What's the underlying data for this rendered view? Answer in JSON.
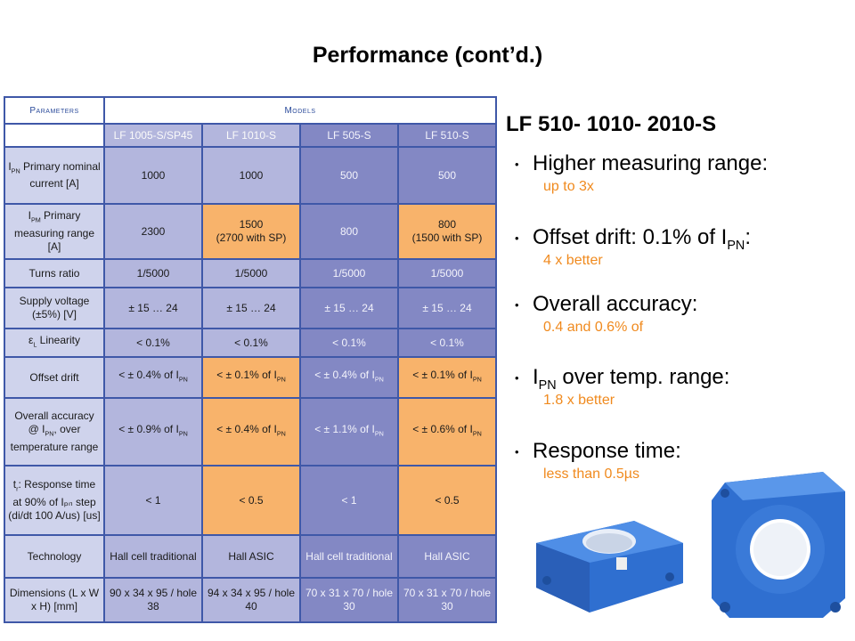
{
  "title": "Performance (cont’d.)",
  "table": {
    "header_params": "Parameters",
    "header_models": "Models",
    "models": [
      "LF 1005-S/SP45",
      "LF 1010-S",
      "LF 505-S",
      "LF 510-S"
    ],
    "rows": [
      {
        "param_main": "I",
        "param_sub": "PN",
        "param_rest": " Primary nominal current [A]",
        "cells": [
          {
            "v1": "1000",
            "v2": "",
            "hi": false
          },
          {
            "v1": "1000",
            "v2": "",
            "hi": false
          },
          {
            "v1": "500",
            "v2": "",
            "hi": false
          },
          {
            "v1": "500",
            "v2": "",
            "hi": false
          }
        ]
      },
      {
        "param_main": "I",
        "param_sub": "PM",
        "param_rest": " Primary measuring range [A]",
        "cells": [
          {
            "v1": "2300",
            "v2": "",
            "hi": false
          },
          {
            "v1": "1500",
            "v2": "(2700 with SP)",
            "hi": true
          },
          {
            "v1": "800",
            "v2": "",
            "hi": false
          },
          {
            "v1": "800",
            "v2": "(1500 with SP)",
            "hi": true
          }
        ]
      },
      {
        "param_main": "Turns ratio",
        "param_sub": "",
        "param_rest": "",
        "cells": [
          {
            "v1": "1/5000",
            "v2": "",
            "hi": false
          },
          {
            "v1": "1/5000",
            "v2": "",
            "hi": false
          },
          {
            "v1": "1/5000",
            "v2": "",
            "hi": false
          },
          {
            "v1": "1/5000",
            "v2": "",
            "hi": false
          }
        ]
      },
      {
        "param_main": "Supply voltage (±5%)  [V]",
        "param_sub": "",
        "param_rest": "",
        "cells": [
          {
            "v1": "± 15 … 24",
            "v2": "",
            "hi": false
          },
          {
            "v1": "± 15 … 24",
            "v2": "",
            "hi": false
          },
          {
            "v1": "± 15 … 24",
            "v2": "",
            "hi": false
          },
          {
            "v1": "± 15 … 24",
            "v2": "",
            "hi": false
          }
        ]
      },
      {
        "param_main": "ε",
        "param_sub": "L",
        "param_rest": " Linearity",
        "cells": [
          {
            "v1": "< 0.1%",
            "v2": "",
            "hi": false
          },
          {
            "v1": "< 0.1%",
            "v2": "",
            "hi": false
          },
          {
            "v1": "< 0.1%",
            "v2": "",
            "hi": false
          },
          {
            "v1": "< 0.1%",
            "v2": "",
            "hi": false
          }
        ]
      },
      {
        "param_main": "Offset drift",
        "param_sub": "",
        "param_rest": "",
        "cells": [
          {
            "v1": "< ± 0.4% of I",
            "v2": "PN",
            "hi": false
          },
          {
            "v1": "< ± 0.1% of I",
            "v2": "PN",
            "hi": true
          },
          {
            "v1": "< ± 0.4% of I",
            "v2": "PN",
            "hi": false
          },
          {
            "v1": "< ± 0.1% of I",
            "v2": "PN",
            "hi": true
          }
        ]
      },
      {
        "param_main": "Overall accuracy @ I",
        "param_sub": "PN",
        "param_rest": ", over temperature range",
        "cells": [
          {
            "v1": "< ± 0.9% of I",
            "v2": "PN",
            "hi": false
          },
          {
            "v1": "< ± 0.4% of I",
            "v2": "PN",
            "hi": true
          },
          {
            "v1": "< ± 1.1% of I",
            "v2": "PN",
            "hi": false
          },
          {
            "v1": "< ± 0.6% of I",
            "v2": "PN",
            "hi": true
          }
        ]
      },
      {
        "param_main": "t",
        "param_sub": "r",
        "param_rest": ": Response time at 90% of Iₚₙ step (di/dt 100 A/us)  [us]",
        "cells": [
          {
            "v1": "< 1",
            "v2": "",
            "hi": false
          },
          {
            "v1": "< 0.5",
            "v2": "",
            "hi": true
          },
          {
            "v1": "< 1",
            "v2": "",
            "hi": false
          },
          {
            "v1": "< 0.5",
            "v2": "",
            "hi": true
          }
        ]
      },
      {
        "param_main": "Technology",
        "param_sub": "",
        "param_rest": "",
        "cells": [
          {
            "v1": "Hall cell traditional",
            "v2": "",
            "hi": false
          },
          {
            "v1": "Hall ASIC",
            "v2": "",
            "hi": false
          },
          {
            "v1": "Hall cell traditional",
            "v2": "",
            "hi": false
          },
          {
            "v1": "Hall ASIC",
            "v2": "",
            "hi": false
          }
        ]
      },
      {
        "param_main": "Dimensions (L x W x H) [mm]",
        "param_sub": "",
        "param_rest": "",
        "cells": [
          {
            "v1": "90 x 34 x 95 / hole 38",
            "v2": "",
            "hi": false
          },
          {
            "v1": "94 x 34 x 95 / hole 40",
            "v2": "",
            "hi": false
          },
          {
            "v1": "70 x 31 x 70 / hole 30",
            "v2": "",
            "hi": false
          },
          {
            "v1": "70 x 31 x 70 / hole 30",
            "v2": "",
            "hi": false
          }
        ]
      }
    ]
  },
  "right": {
    "title": "LF 510- 1010- 2010-S",
    "bullets": [
      {
        "main": "Higher measuring range:",
        "sub_main": "",
        "main_tail": "",
        "detail": "up to 3x"
      },
      {
        "main": "Offset drift: 0.1% of I",
        "sub_main": "PN",
        "main_tail": ":",
        "detail": "4 x better"
      },
      {
        "main": "Overall accuracy:",
        "sub_main": "",
        "main_tail": "",
        "detail": "0.4 and 0.6% of"
      },
      {
        "main": "I",
        "sub_main": "PN",
        "main_tail": " over temp. range:",
        "detail": "1.8 x better"
      },
      {
        "main": "Response time:",
        "sub_main": "",
        "main_tail": "",
        "detail": "less than 0.5µs"
      }
    ]
  },
  "colors": {
    "table_border": "#3f58a8",
    "light_cell": "#b3b6dd",
    "dark_cell": "#8388c4",
    "highlight": "#f8b36b",
    "detail_text": "#f08a1e"
  }
}
